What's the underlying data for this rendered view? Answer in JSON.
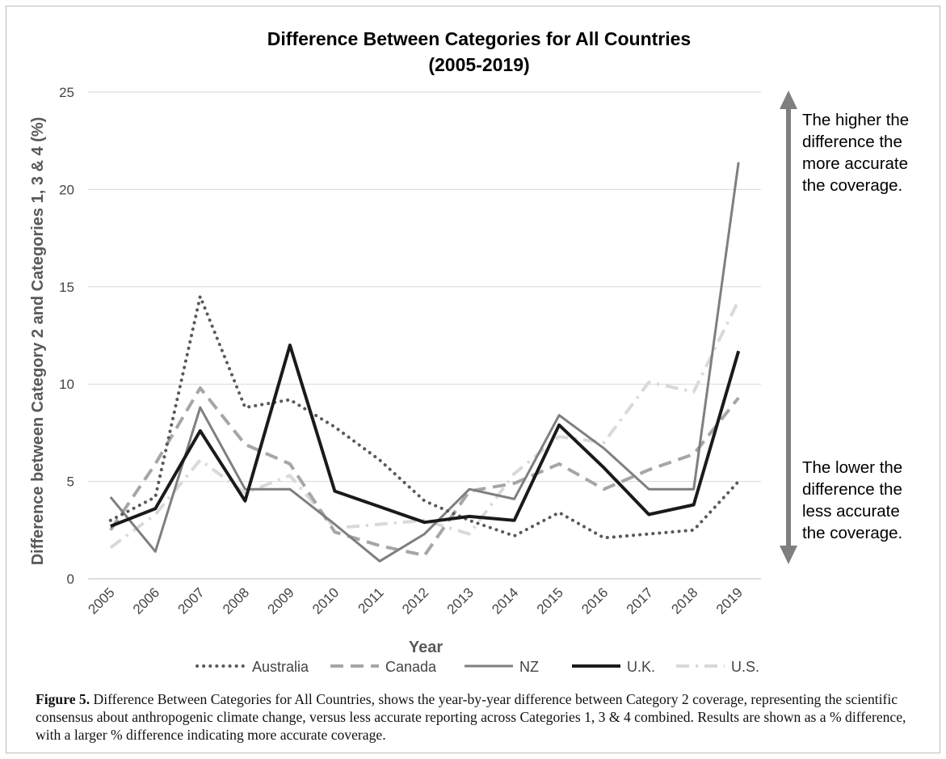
{
  "chart_data": {
    "type": "line",
    "title_line1": "Difference Between Categories for All Countries",
    "title_line2": "(2005-2019)",
    "xlabel": "Year",
    "ylabel": "Difference between Category 2 and Categories 1, 3 & 4 (%)",
    "ylim": [
      0,
      25
    ],
    "yticks": [
      0,
      5,
      10,
      15,
      20,
      25
    ],
    "grid": true,
    "legend_position": "bottom",
    "x": [
      "2005",
      "2006",
      "2007",
      "2008",
      "2009",
      "2010",
      "2011",
      "2012",
      "2013",
      "2014",
      "2015",
      "2016",
      "2017",
      "2018",
      "2019"
    ],
    "series": [
      {
        "name": "Australia",
        "style": "dotted",
        "color": "#595959",
        "values": [
          3.0,
          4.2,
          14.5,
          8.8,
          9.2,
          7.8,
          6.1,
          4.0,
          3.0,
          2.2,
          3.4,
          2.1,
          2.3,
          2.5,
          5.0
        ]
      },
      {
        "name": "Canada",
        "style": "dashed",
        "color": "#a6a6a6",
        "values": [
          2.5,
          5.9,
          9.8,
          6.9,
          5.9,
          2.4,
          1.7,
          1.2,
          4.5,
          4.9,
          5.9,
          4.6,
          5.6,
          6.4,
          9.3
        ]
      },
      {
        "name": "NZ",
        "style": "solid",
        "color": "#7f7f7f",
        "values": [
          4.2,
          1.4,
          8.8,
          4.6,
          4.6,
          2.8,
          0.9,
          2.3,
          4.6,
          4.1,
          8.4,
          6.7,
          4.6,
          4.6,
          21.4
        ]
      },
      {
        "name": "U.K.",
        "style": "solid-thick",
        "color": "#1a1a1a",
        "values": [
          2.7,
          3.6,
          7.6,
          4.0,
          12.0,
          4.5,
          3.7,
          2.9,
          3.2,
          3.0,
          7.9,
          5.7,
          3.3,
          3.8,
          11.7
        ]
      },
      {
        "name": "U.S.",
        "style": "dashdot",
        "color": "#d9d9d9",
        "values": [
          1.6,
          3.3,
          6.1,
          4.4,
          5.3,
          2.6,
          2.8,
          3.0,
          2.3,
          5.4,
          7.3,
          7.0,
          10.1,
          9.6,
          14.3
        ]
      }
    ],
    "annotation_top": [
      "The higher the",
      "difference the",
      "more accurate",
      "the coverage."
    ],
    "annotation_bottom": [
      "The lower the",
      "difference the",
      "less accurate",
      "the coverage."
    ]
  },
  "caption": {
    "label": "Figure 5.",
    "text": " Difference Between Categories for All Countries, shows the year-by-year difference between Category 2 coverage, representing the scientific consensus about anthropogenic climate change, versus less accurate reporting across Categories 1, 3 & 4 combined. Results are shown as a % difference, with a larger % difference indicating more accurate coverage."
  }
}
